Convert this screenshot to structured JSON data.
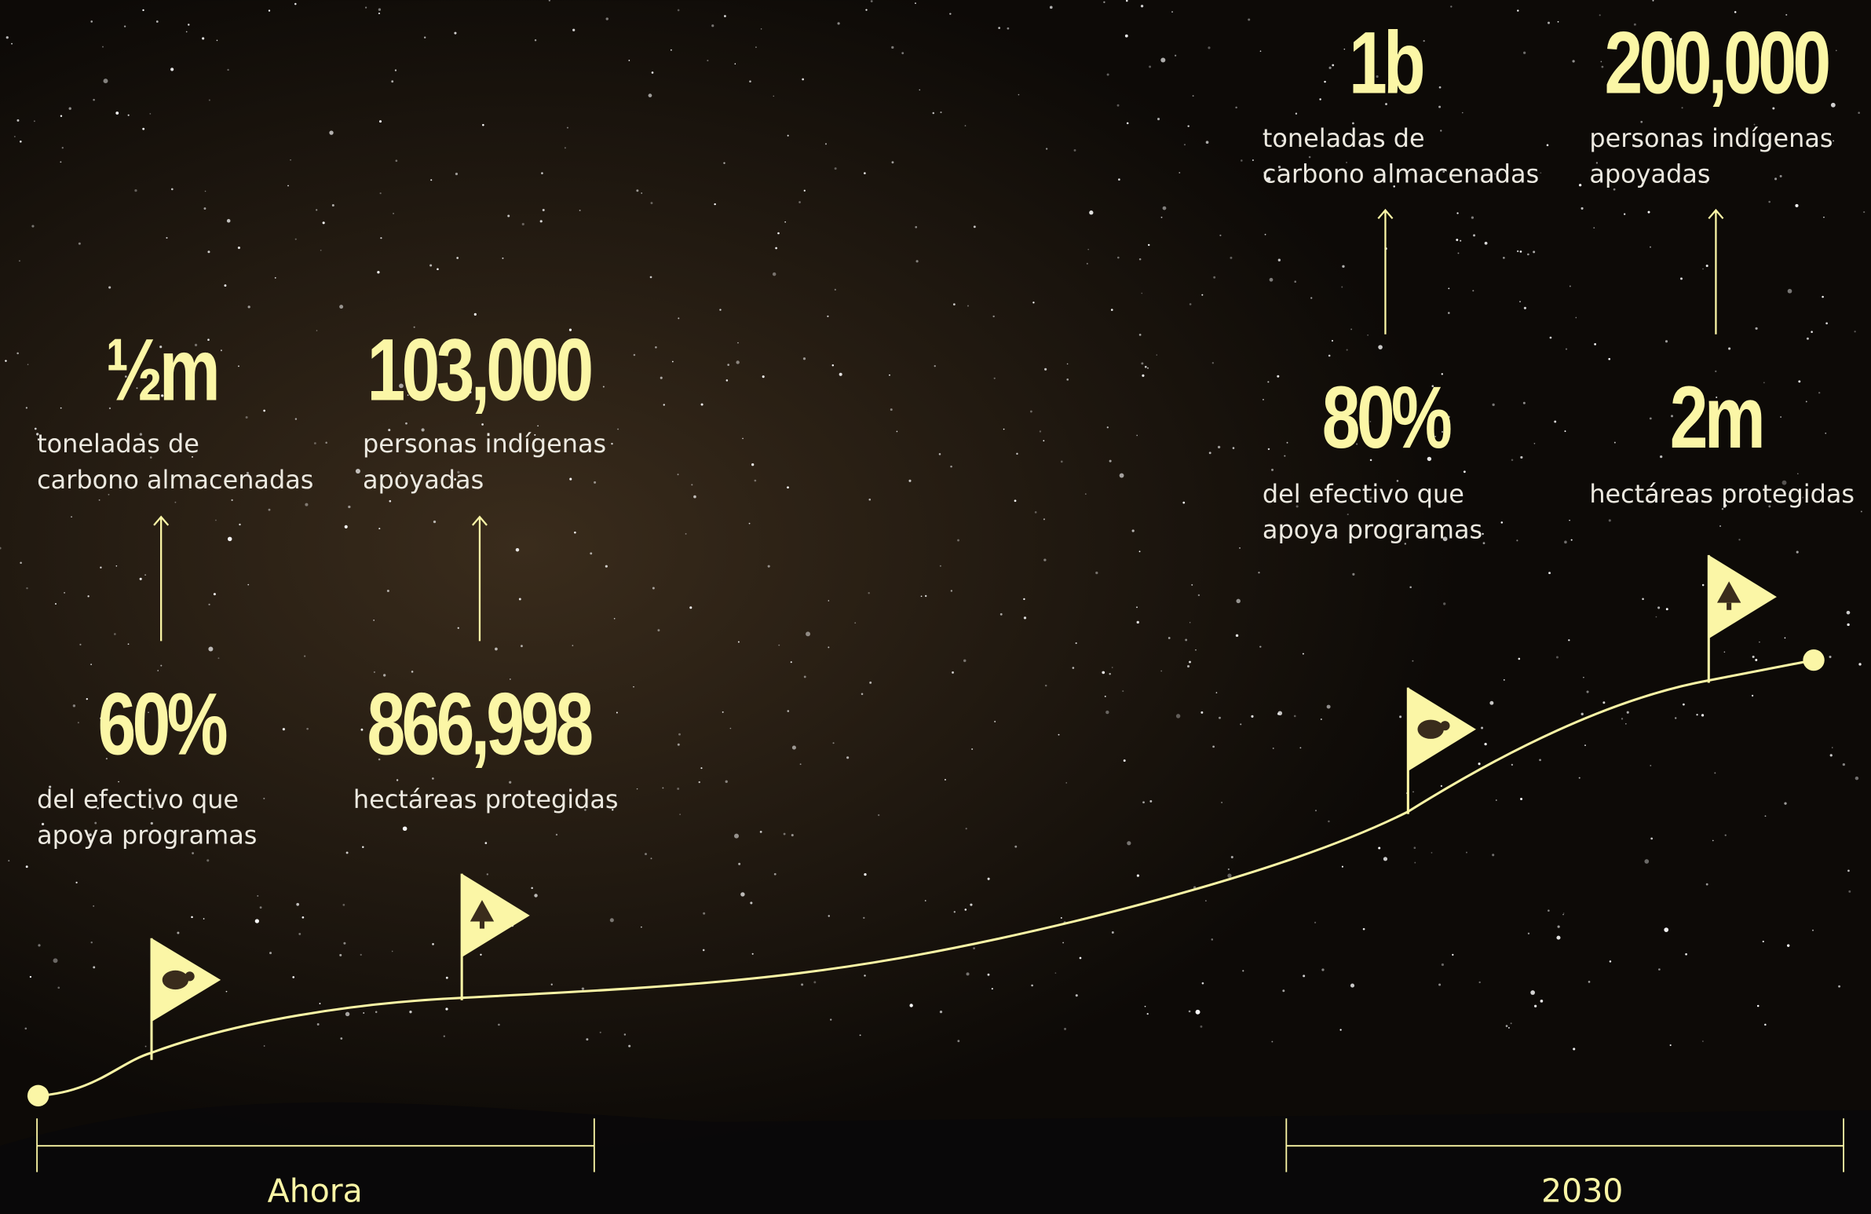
{
  "stats": [
    {
      "value": "½m",
      "label": [
        "toneladas de",
        "carbono almacenadas"
      ]
    },
    {
      "value": "60%",
      "label": [
        "del efectivo que",
        "apoya programas"
      ]
    },
    {
      "value": "103,000",
      "label": [
        "personas indígenas",
        "apoyadas"
      ]
    },
    {
      "value": "866,998",
      "label": [
        "hectáreas protegidas"
      ]
    },
    {
      "value": "1b",
      "label": [
        "toneladas de",
        "carbono almacenadas"
      ]
    },
    {
      "value": "80%",
      "label": [
        "del efectivo que",
        "apoya programas"
      ]
    },
    {
      "value": "200,000",
      "label": [
        "personas indígenas",
        "apoyadas"
      ]
    },
    {
      "value": "2m",
      "label": [
        "hectáreas protegidas"
      ]
    }
  ],
  "timeline": {
    "start": "Ahora",
    "end": "2030"
  }
}
